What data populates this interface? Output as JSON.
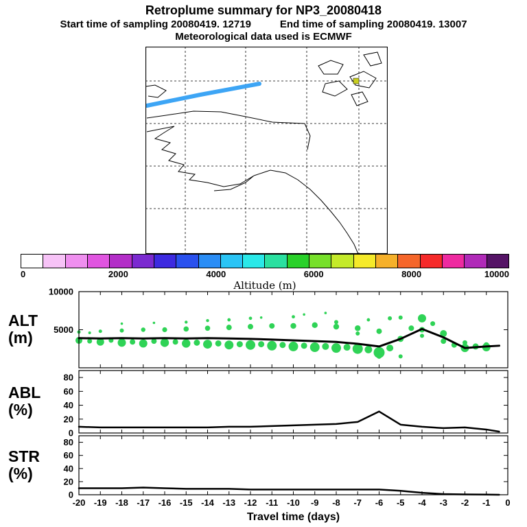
{
  "header": {
    "title": "Retroplume summary for NP3_20080418",
    "start_label": "Start time of sampling 20080419. 12719",
    "end_label": "End time of sampling 20080419. 13007",
    "met_label": "Meteorological data used is ECMWF"
  },
  "map": {
    "trajectory_color": "#3da5f5",
    "marker_color": "#c9cf1e"
  },
  "colorbar": {
    "title": "Altitude (m)",
    "min": 0,
    "max": 10000,
    "tick_labels": [
      "0",
      "2000",
      "4000",
      "6000",
      "8000",
      "10000"
    ],
    "colors": [
      "#ffffff",
      "#f7c3f7",
      "#ef8fef",
      "#e055e0",
      "#b32ec8",
      "#7b2ad0",
      "#3d2ae0",
      "#2a51ee",
      "#2a8df5",
      "#2ac4f5",
      "#2ae8e8",
      "#2ae0a0",
      "#2ad12a",
      "#77e02a",
      "#c4ea2a",
      "#f5ea2a",
      "#f5b02a",
      "#f5662a",
      "#f52a2a",
      "#ee2aa0",
      "#b02ab8",
      "#551466"
    ]
  },
  "xaxis": {
    "label": "Travel time (days)",
    "min": -20,
    "max": 0,
    "ticks": [
      -20,
      -19,
      -18,
      -17,
      -16,
      -15,
      -14,
      -13,
      -12,
      -11,
      -10,
      -9,
      -8,
      -7,
      -6,
      -5,
      -4,
      -3,
      -2,
      -1,
      0
    ]
  },
  "chart_data": [
    {
      "type": "scatter",
      "panel": "ALT",
      "label_top": "ALT",
      "label_bottom": "(m)",
      "ylabel": "ALT (m)",
      "ylim": [
        0,
        10000
      ],
      "yticks": [
        5000,
        10000
      ],
      "scatter_color": "#2fd356",
      "line": {
        "x": [
          -20,
          -19,
          -18,
          -17,
          -16,
          -15,
          -14,
          -13,
          -12,
          -11,
          -10,
          -9,
          -8,
          -7,
          -6,
          -5,
          -4,
          -3,
          -2,
          -1,
          -0.4
        ],
        "y": [
          3900,
          3850,
          3900,
          3850,
          3900,
          3850,
          3900,
          3850,
          3800,
          3700,
          3600,
          3500,
          3400,
          3150,
          2800,
          3800,
          5100,
          4000,
          2600,
          2800,
          2900
        ]
      },
      "scatter": [
        [
          -20,
          3600,
          5
        ],
        [
          -20,
          4700,
          2.5
        ],
        [
          -19.5,
          3500,
          3.5
        ],
        [
          -19.5,
          4600,
          2
        ],
        [
          -19,
          3400,
          5.5
        ],
        [
          -19,
          4800,
          2.5
        ],
        [
          -18.5,
          3600,
          3.5
        ],
        [
          -18,
          3300,
          6
        ],
        [
          -18,
          4900,
          3
        ],
        [
          -18,
          5800,
          1.8
        ],
        [
          -17.5,
          3400,
          4
        ],
        [
          -17,
          3200,
          6
        ],
        [
          -17,
          5000,
          3.2
        ],
        [
          -16.5,
          3500,
          4
        ],
        [
          -16.5,
          5900,
          1.8
        ],
        [
          -16,
          3300,
          6.2
        ],
        [
          -16,
          5000,
          3.6
        ],
        [
          -15.5,
          3400,
          4
        ],
        [
          -15,
          3200,
          6.2
        ],
        [
          -15,
          5100,
          3.8
        ],
        [
          -15,
          6000,
          2.2
        ],
        [
          -14.5,
          3300,
          4.5
        ],
        [
          -14,
          3100,
          6.5
        ],
        [
          -14,
          5200,
          3.8
        ],
        [
          -14,
          6200,
          2.2
        ],
        [
          -13.5,
          3200,
          4.5
        ],
        [
          -13,
          3000,
          6.5
        ],
        [
          -13,
          5300,
          4
        ],
        [
          -13,
          6300,
          2.4
        ],
        [
          -12.5,
          3100,
          4.5
        ],
        [
          -12,
          3000,
          7
        ],
        [
          -12,
          5400,
          4
        ],
        [
          -12,
          6500,
          2.4
        ],
        [
          -11.5,
          3100,
          4.5
        ],
        [
          -11.5,
          6600,
          1.8
        ],
        [
          -11,
          2900,
          7
        ],
        [
          -11,
          5500,
          4
        ],
        [
          -10.5,
          3000,
          4.5
        ],
        [
          -10,
          2800,
          7
        ],
        [
          -10,
          5500,
          4.2
        ],
        [
          -10,
          6700,
          2.4
        ],
        [
          -9.5,
          2900,
          4.5
        ],
        [
          -9.5,
          7000,
          1.8
        ],
        [
          -9,
          2700,
          7
        ],
        [
          -9,
          5600,
          4.2
        ],
        [
          -8.5,
          2800,
          5
        ],
        [
          -8.5,
          7200,
          1.8
        ],
        [
          -8,
          2600,
          7
        ],
        [
          -8,
          5400,
          4.2
        ],
        [
          -8,
          6000,
          3
        ],
        [
          -7.5,
          2700,
          5
        ],
        [
          -7,
          2500,
          7.5
        ],
        [
          -7,
          5200,
          4.2
        ],
        [
          -7,
          4500,
          3
        ],
        [
          -6.5,
          2400,
          5.5
        ],
        [
          -6.5,
          6300,
          2.4
        ],
        [
          -6,
          2000,
          8
        ],
        [
          -6,
          4800,
          4
        ],
        [
          -6,
          1500,
          3.5
        ],
        [
          -5.5,
          2600,
          5
        ],
        [
          -5.5,
          6500,
          3
        ],
        [
          -5,
          3800,
          4.5
        ],
        [
          -5,
          1500,
          3
        ],
        [
          -5,
          6600,
          3
        ],
        [
          -4.5,
          5200,
          4
        ],
        [
          -4,
          6500,
          6
        ],
        [
          -4,
          5000,
          4
        ],
        [
          -4,
          4200,
          3
        ],
        [
          -3.5,
          5800,
          3.5
        ],
        [
          -3,
          4500,
          5
        ],
        [
          -3,
          3500,
          4
        ],
        [
          -2.5,
          3000,
          4
        ],
        [
          -2,
          2600,
          6
        ],
        [
          -2,
          3300,
          3.5
        ],
        [
          -1.5,
          2800,
          4.5
        ],
        [
          -1,
          2700,
          6
        ],
        [
          -1,
          3000,
          4
        ]
      ]
    },
    {
      "type": "line",
      "panel": "ABL",
      "label_top": "ABL",
      "label_bottom": "(%)",
      "ylabel": "ABL (%)",
      "ylim": [
        0,
        90
      ],
      "yticks": [
        0,
        20,
        40,
        60,
        80
      ],
      "line": {
        "x": [
          -20,
          -19,
          -18,
          -17,
          -16,
          -15,
          -14,
          -13,
          -12,
          -11,
          -10,
          -9,
          -8,
          -7,
          -6,
          -5,
          -4,
          -3,
          -2,
          -1,
          -0.4
        ],
        "y": [
          9,
          8,
          8,
          8,
          8,
          8,
          8,
          9,
          9,
          10,
          11,
          12,
          13,
          16,
          31,
          12,
          9,
          7,
          8,
          5,
          2
        ]
      }
    },
    {
      "type": "line",
      "panel": "STR",
      "label_top": "STR",
      "label_bottom": "(%)",
      "ylabel": "STR (%)",
      "ylim": [
        0,
        90
      ],
      "yticks": [
        0,
        20,
        40,
        60,
        80
      ],
      "line": {
        "x": [
          -20,
          -19,
          -18,
          -17,
          -16,
          -15,
          -14,
          -13,
          -12,
          -11,
          -10,
          -9,
          -8,
          -7,
          -6,
          -5,
          -4,
          -3,
          -2,
          -1,
          -0.4
        ],
        "y": [
          10,
          10,
          10,
          11,
          10,
          9,
          9,
          9,
          8,
          8,
          8,
          8,
          8,
          8,
          8,
          6,
          3,
          1,
          0.5,
          0.2,
          0
        ]
      }
    }
  ]
}
